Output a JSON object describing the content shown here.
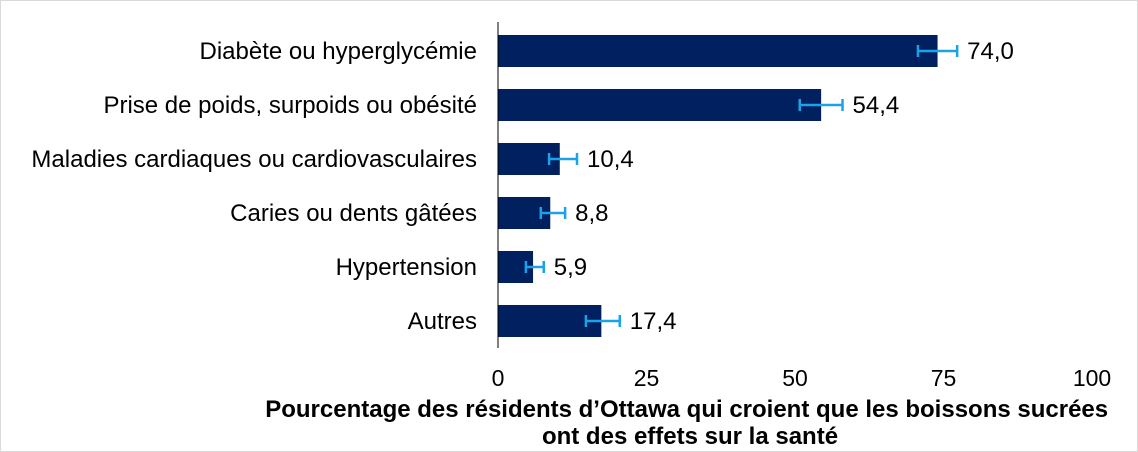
{
  "chart_data": {
    "type": "bar",
    "orientation": "horizontal",
    "categories": [
      "Diabète ou hyperglycémie",
      "Prise de poids, surpoids ou obésité",
      "Maladies cardiaques ou cardiovasculaires",
      "Caries ou dents gâtées",
      "Hypertension",
      "Autres"
    ],
    "values": [
      74.0,
      54.4,
      10.4,
      8.8,
      5.9,
      17.4
    ],
    "value_labels": [
      "74,0",
      "54,4",
      "10,4",
      "8,8",
      "5,9",
      "17,4"
    ],
    "error_low": [
      70.7,
      50.8,
      8.6,
      7.2,
      4.7,
      14.8
    ],
    "error_high": [
      77.3,
      58.0,
      13.3,
      11.3,
      7.7,
      20.5
    ],
    "xlabel_lines": [
      "Pourcentage des résidents d’Ottawa qui croient que les boissons sucrées",
      "ont des effets sur la santé"
    ],
    "xlim": [
      0,
      100
    ],
    "xticks": [
      "0",
      "25",
      "50",
      "75",
      "100"
    ],
    "grid": false,
    "legend": false,
    "colors": {
      "bar": "#002060",
      "error_bar": "#1aa3e8",
      "axis": "#000000",
      "frame": "#d9d9d9"
    }
  }
}
